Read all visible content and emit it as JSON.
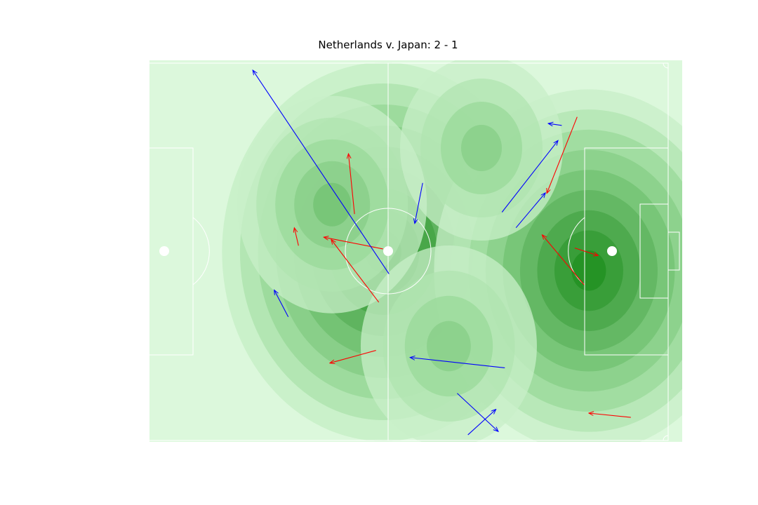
{
  "chart_data": {
    "type": "scatter",
    "title": "Netherlands v. Japan: 2 - 1",
    "xlim": [
      0,
      120
    ],
    "ylim": [
      0,
      80
    ],
    "xlabel": "",
    "ylabel": "",
    "axis_visible": false,
    "background": "football pitch with pass density contours",
    "density_colormap": [
      "#dcf8dc",
      "#c8efc8",
      "#b0e4b0",
      "#9ad99a",
      "#87cd87",
      "#72c172",
      "#5db35d",
      "#47a547",
      "#339933",
      "#1f8f1f"
    ],
    "pitch_line_color": "#ffffff",
    "density_peaks": [
      {
        "x": 59,
        "y": 40,
        "level": 1.0
      },
      {
        "x": 103,
        "y": 36,
        "level": 0.95
      },
      {
        "x": 48,
        "y": 50,
        "level": 0.5
      },
      {
        "x": 73,
        "y": 20,
        "level": 0.45
      },
      {
        "x": 80,
        "y": 62,
        "level": 0.4
      }
    ],
    "series": [
      {
        "color": "#ff0000",
        "passes": [
          {
            "x": 52.8,
            "y": 48.0,
            "end_x": 51.5,
            "end_y": 60.8
          },
          {
            "x": 40.8,
            "y": 41.3,
            "end_x": 39.9,
            "end_y": 45.1
          },
          {
            "x": 58.9,
            "y": 40.6,
            "end_x": 46.2,
            "end_y": 43.1
          },
          {
            "x": 58.0,
            "y": 29.3,
            "end_x": 47.8,
            "end_y": 42.6
          },
          {
            "x": 57.4,
            "y": 19.1,
            "end_x": 47.5,
            "end_y": 16.4
          },
          {
            "x": 100.5,
            "y": 68.6,
            "end_x": 94.0,
            "end_y": 52.4
          },
          {
            "x": 102.0,
            "y": 33.0,
            "end_x": 93.0,
            "end_y": 43.6
          },
          {
            "x": 100.0,
            "y": 40.8,
            "end_x": 105.0,
            "end_y": 39.2
          },
          {
            "x": 112.0,
            "y": 4.9,
            "end_x": 103.0,
            "end_y": 5.8
          }
        ]
      },
      {
        "color": "#0000ff",
        "passes": [
          {
            "x": 60.2,
            "y": 35.3,
            "end_x": 31.0,
            "end_y": 78.5
          },
          {
            "x": 67.4,
            "y": 54.6,
            "end_x": 65.7,
            "end_y": 46.0
          },
          {
            "x": 38.6,
            "y": 26.2,
            "end_x": 35.6,
            "end_y": 31.9
          },
          {
            "x": 97.2,
            "y": 66.8,
            "end_x": 94.3,
            "end_y": 67.2
          },
          {
            "x": 84.4,
            "y": 48.4,
            "end_x": 96.4,
            "end_y": 63.6
          },
          {
            "x": 87.4,
            "y": 45.1,
            "end_x": 93.7,
            "end_y": 52.5
          },
          {
            "x": 85.0,
            "y": 15.4,
            "end_x": 64.7,
            "end_y": 17.6
          },
          {
            "x": 74.8,
            "y": 10.0,
            "end_x": 83.6,
            "end_y": 1.9
          },
          {
            "x": 77.1,
            "y": 1.2,
            "end_x": 83.1,
            "end_y": 6.6
          }
        ]
      }
    ]
  }
}
